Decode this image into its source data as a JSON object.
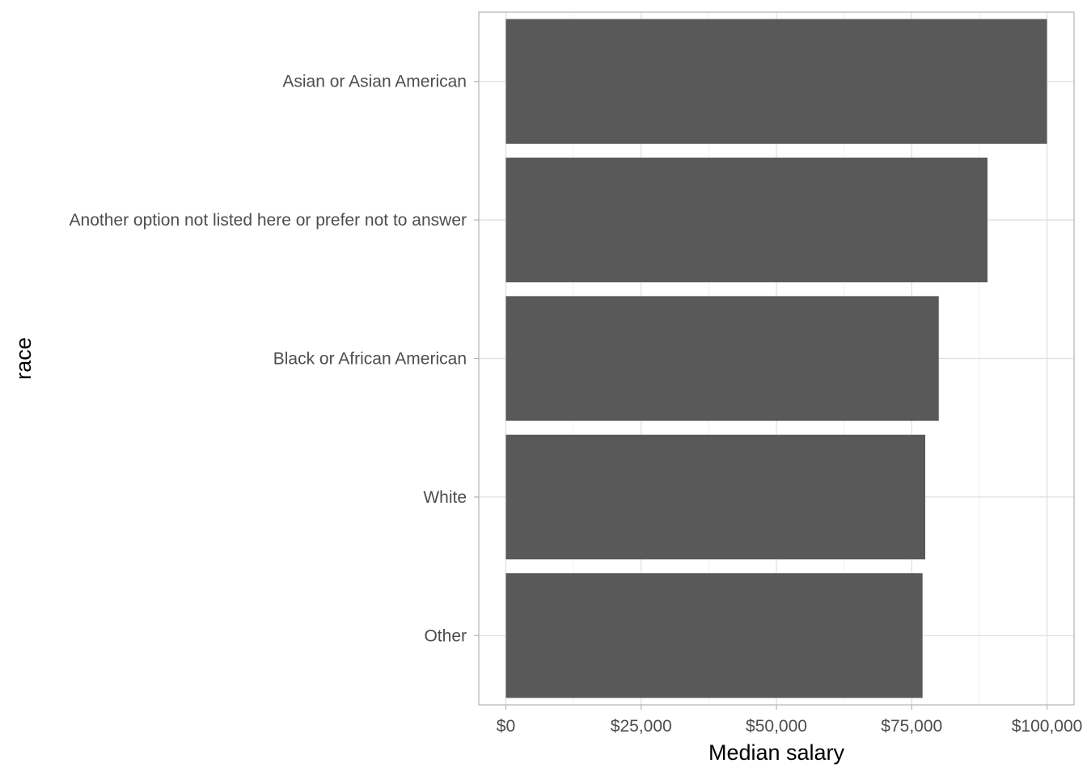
{
  "chart_data": {
    "type": "bar",
    "orientation": "horizontal",
    "categories": [
      "Asian or Asian American",
      "Another option not listed here or prefer not to answer",
      "Black or African American",
      "White",
      "Other"
    ],
    "values": [
      100000,
      89000,
      80000,
      77500,
      77000
    ],
    "xlabel": "Median salary",
    "ylabel": "race",
    "xlim": [
      -5000,
      105000
    ],
    "x_ticks": [
      0,
      25000,
      50000,
      75000,
      100000
    ],
    "x_tick_labels": [
      "$0",
      "$25,000",
      "$50,000",
      "$75,000",
      "$100,000"
    ],
    "grid": true,
    "legend": "none",
    "colors": {
      "bar": "#595959",
      "grid_major": "#dedede",
      "grid_minor": "#efefef",
      "panel_border": "#b3b3b3",
      "tick_text": "#4d4d4d",
      "axis_title": "#000000"
    }
  }
}
